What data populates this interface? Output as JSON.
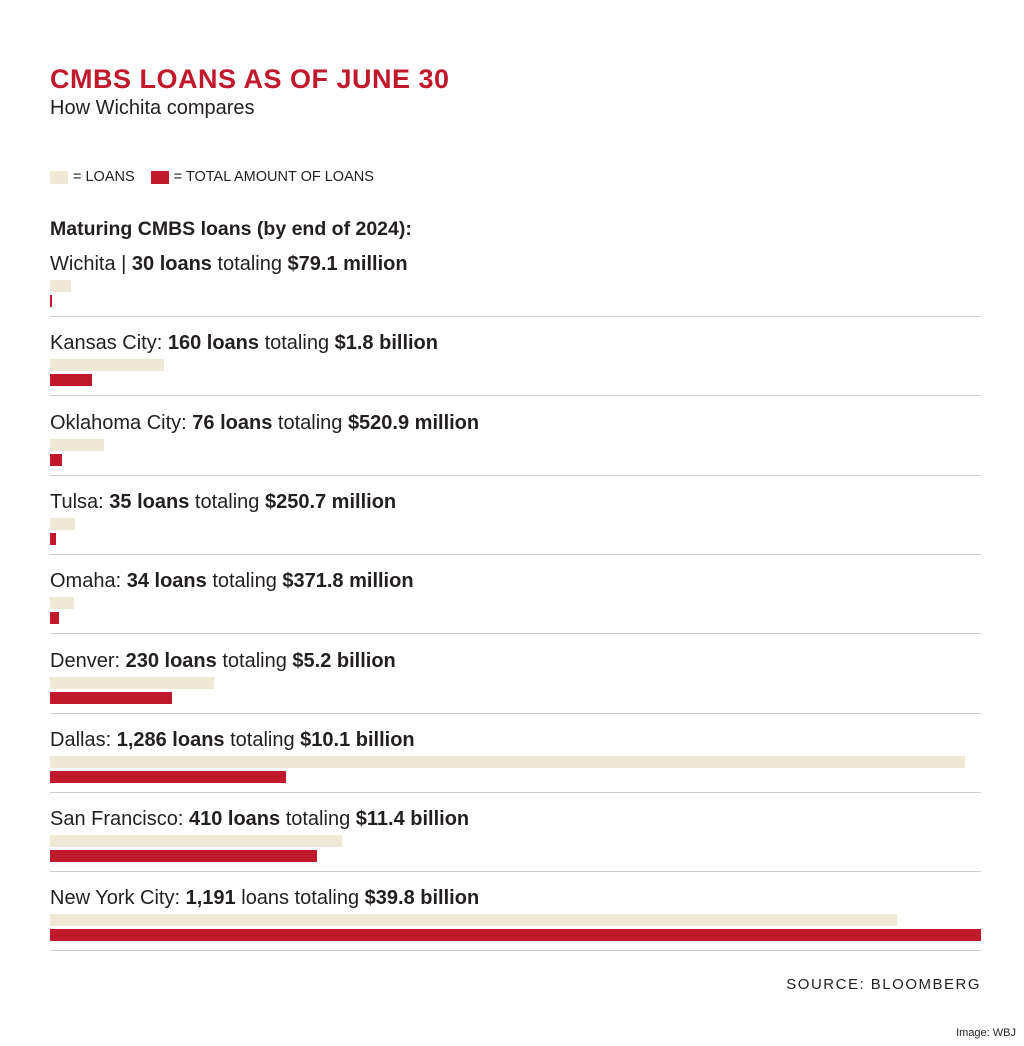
{
  "header": {
    "title": "CMBS LOANS AS OF JUNE 30",
    "subtitle": "How Wichita compares"
  },
  "legend": {
    "loans_label": "= LOANS",
    "amount_label": "= TOTAL AMOUNT OF LOANS"
  },
  "section_heading": "Maturing CMBS loans (by end of 2024):",
  "colors": {
    "loans": "#efe8d6",
    "amount": "#c0192c",
    "title": "#c0192c",
    "divider": "#cfcfcf"
  },
  "source": "SOURCE: BLOOMBERG",
  "credit": "Image: WBJ",
  "chart_data": {
    "type": "bar",
    "title": "CMBS LOANS AS OF JUNE 30",
    "subtitle": "How Wichita compares",
    "categories": [
      "Wichita",
      "Kansas City",
      "Oklahoma City",
      "Tulsa",
      "Omaha",
      "Denver",
      "Dallas",
      "San Francisco",
      "New York City"
    ],
    "series": [
      {
        "name": "LOANS",
        "values": [
          30,
          160,
          76,
          35,
          34,
          230,
          1286,
          410,
          1191
        ]
      },
      {
        "name": "TOTAL AMOUNT OF LOANS",
        "values": [
          0.0791,
          1.8,
          0.5209,
          0.2507,
          0.3718,
          5.2,
          10.1,
          11.4,
          39.8
        ]
      }
    ],
    "label_parts": [
      {
        "city": "Wichita",
        "sep": " | ",
        "loans": "30 loans",
        "mid": " totaling ",
        "amount": "$79.1 million"
      },
      {
        "city": "Kansas City",
        "sep": ": ",
        "loans": "160 loans",
        "mid": " totaling ",
        "amount": "$1.8 billion"
      },
      {
        "city": "Oklahoma City",
        "sep": ": ",
        "loans": "76 loans",
        "mid": " totaling ",
        "amount": "$520.9 million"
      },
      {
        "city": "Tulsa",
        "sep": ": ",
        "loans": "35 loans",
        "mid": " totaling ",
        "amount": "$250.7 million"
      },
      {
        "city": "Omaha",
        "sep": ": ",
        "loans": "34 loans",
        "mid": " totaling ",
        "amount": "$371.8 million"
      },
      {
        "city": "Denver",
        "sep": ": ",
        "loans": "230 loans",
        "mid": " totaling ",
        "amount": "$5.2 billion"
      },
      {
        "city": "Dallas",
        "sep": ": ",
        "loans": "1,286 loans",
        "mid": " totaling ",
        "amount": "$10.1 billion"
      },
      {
        "city": "San Francisco",
        "sep": ": ",
        "loans": "410 loans",
        "mid": " totaling ",
        "amount": "$11.4 billion"
      },
      {
        "city": "New York City",
        "sep": ": ",
        "loans": "1,191",
        "mid": " loans totaling ",
        "amount": "$39.8 billion"
      }
    ]
  }
}
